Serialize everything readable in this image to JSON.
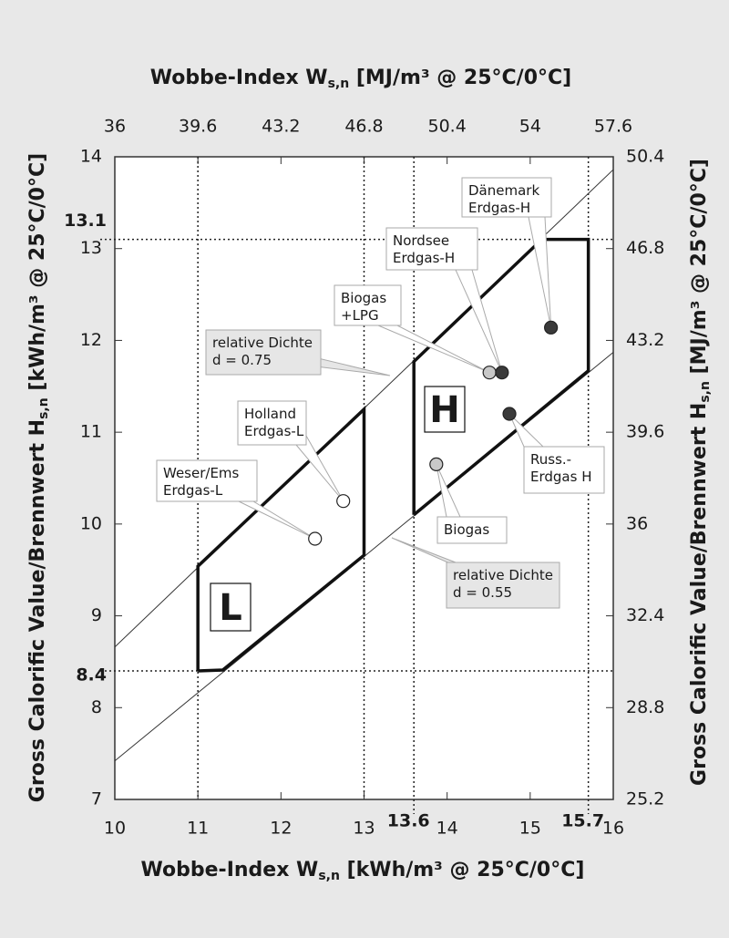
{
  "chart_data": {
    "type": "scatter",
    "xlabel": {
      "main": "Wobbe-Index W",
      "sub": "s,n",
      "rest": " [kWh/m³ @ 25°C/0°C]"
    },
    "x2label": {
      "main": "Wobbe-Index W",
      "sub": "s,n",
      "rest": " [MJ/m³ @ 25°C/0°C]"
    },
    "ylabel": {
      "main": "Gross Calorific Value/Brennwert H",
      "sub": "s,n",
      "rest": " [kWh/m³ @ 25°C/0°C]"
    },
    "y2label": {
      "main": "Gross Calorific Value/Brennwert H",
      "sub": "s,n",
      "rest": " [MJ/m³ @ 25°C/0°C]"
    },
    "xlim": [
      10,
      16
    ],
    "xticks": [
      10,
      11,
      12,
      13,
      14,
      15,
      16
    ],
    "x2lim": [
      36,
      57.6
    ],
    "x2ticks": [
      36,
      39.6,
      43.2,
      46.8,
      50.4,
      54,
      57.6
    ],
    "ylim": [
      7,
      14
    ],
    "yticks": [
      7,
      8,
      9,
      10,
      11,
      12,
      13,
      14
    ],
    "y2lim": [
      25.2,
      50.4
    ],
    "y2ticks": [
      25.2,
      28.8,
      32.4,
      36,
      39.6,
      43.2,
      46.8,
      50.4
    ],
    "ref_x": [
      11,
      13
    ],
    "ref_xticks": [
      13.6,
      15.7
    ],
    "ref_yticks": [
      13.1,
      8.4
    ],
    "regions": [
      {
        "label": "L",
        "x": [
          11,
          11,
          13,
          13,
          11.3,
          11
        ],
        "y": [
          8.4,
          9.54,
          11.25,
          9.66,
          8.41,
          8.4
        ]
      },
      {
        "label": "H",
        "x": [
          13.6,
          13.6,
          15.14,
          15.7,
          15.7,
          13.6
        ],
        "y": [
          10.1,
          11.77,
          13.1,
          13.1,
          11.67,
          10.1
        ]
      }
    ],
    "density_lines": [
      {
        "label": [
          "relative Dichte",
          "d = 0.75"
        ],
        "x": [
          10,
          16
        ],
        "y": [
          8.66,
          13.86
        ]
      },
      {
        "label": [
          "relative Dichte",
          "d = 0.55"
        ],
        "x": [
          10,
          16
        ],
        "y": [
          7.42,
          11.87
        ]
      }
    ],
    "points": [
      {
        "label": [
          "Weser/Ems",
          "Erdgas-L"
        ],
        "x": 12.41,
        "y": 9.84,
        "color": "#ffffff"
      },
      {
        "label": [
          "Holland",
          "Erdgas-L"
        ],
        "x": 12.75,
        "y": 10.25,
        "color": "#ffffff"
      },
      {
        "label": [
          "Biogas",
          "+LPG"
        ],
        "x": 14.51,
        "y": 11.65,
        "color": "#c8c8c8"
      },
      {
        "label": [
          "Nordsee",
          "Erdgas-H"
        ],
        "x": 14.66,
        "y": 11.65,
        "color": "#3a3a3a"
      },
      {
        "label": [
          "Dänemark",
          "Erdgas-H"
        ],
        "x": 15.25,
        "y": 12.14,
        "color": "#3a3a3a"
      },
      {
        "label": [
          "Russ.-",
          "Erdgas H"
        ],
        "x": 14.75,
        "y": 11.2,
        "color": "#3a3a3a"
      },
      {
        "label": [
          "Biogas"
        ],
        "x": 13.87,
        "y": 10.65,
        "color": "#c8c8c8"
      }
    ]
  }
}
